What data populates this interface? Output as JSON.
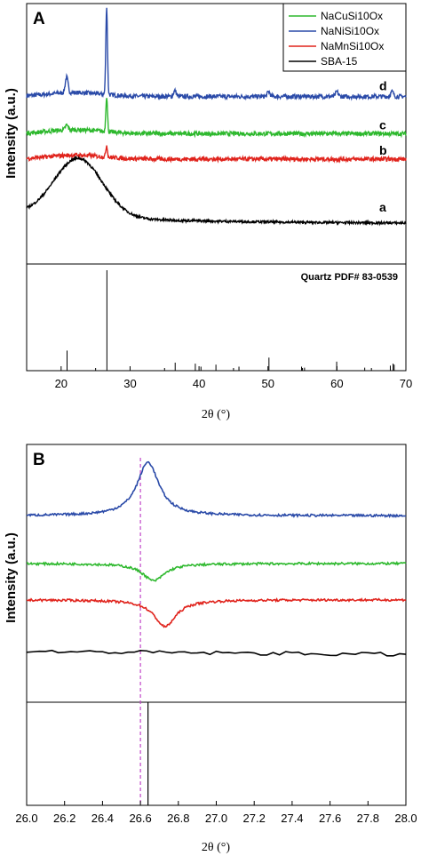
{
  "chart_data": [
    {
      "type": "line",
      "panel_label": "A",
      "xlabel": "2θ (°)",
      "ylabel": "Intensity (a.u.)",
      "xlim": [
        15,
        70
      ],
      "xticks": [
        20,
        30,
        40,
        50,
        60,
        70
      ],
      "legend": {
        "position": "top-right",
        "entries": [
          {
            "name": "NaCuSi10Ox",
            "color": "#2db82d"
          },
          {
            "name": "NaNiSi10Ox",
            "color": "#2a4aa8"
          },
          {
            "name": "NaMnSi10Ox",
            "color": "#e0231c"
          },
          {
            "name": "SBA-15",
            "color": "#000000"
          }
        ]
      },
      "series": [
        {
          "name": "NaNiSi10Ox",
          "label": "d",
          "color": "#2a4aa8",
          "baseline": 0.62,
          "peaks": [
            [
              20.8,
              0.08
            ],
            [
              26.6,
              0.45
            ],
            [
              36.5,
              0.03
            ],
            [
              50.1,
              0.025
            ],
            [
              60.0,
              0.025
            ],
            [
              68.0,
              0.025
            ]
          ]
        },
        {
          "name": "NaCuSi10Ox",
          "label": "c",
          "color": "#2db82d",
          "baseline": 0.43,
          "peaks": [
            [
              20.8,
              0.025
            ],
            [
              26.6,
              0.18
            ]
          ]
        },
        {
          "name": "NaMnSi10Ox",
          "label": "b",
          "color": "#e0231c",
          "baseline": 0.3,
          "peaks": [
            [
              26.6,
              0.06
            ]
          ]
        },
        {
          "name": "SBA-15",
          "label": "a",
          "color": "#000000",
          "baseline": 0.0,
          "broad_peak": [
            22.5,
            0.3
          ]
        }
      ],
      "reference": {
        "label": "Quartz PDF# 83-0539",
        "color": "#000000",
        "lines": [
          [
            20.86,
            0.2
          ],
          [
            26.64,
            1.0
          ],
          [
            36.54,
            0.08
          ],
          [
            39.46,
            0.07
          ],
          [
            40.28,
            0.04
          ],
          [
            42.45,
            0.06
          ],
          [
            45.79,
            0.04
          ],
          [
            50.14,
            0.13
          ],
          [
            54.87,
            0.04
          ],
          [
            55.3,
            0.03
          ],
          [
            59.96,
            0.09
          ],
          [
            64.03,
            0.03
          ],
          [
            67.74,
            0.05
          ],
          [
            68.14,
            0.07
          ],
          [
            68.3,
            0.06
          ]
        ]
      }
    },
    {
      "type": "line",
      "panel_label": "B",
      "xlabel": "2θ (°)",
      "ylabel": "Intensity (a.u.)",
      "xlim": [
        26.0,
        28.0
      ],
      "xticks": [
        26.0,
        26.2,
        26.4,
        26.6,
        26.8,
        27.0,
        27.2,
        27.4,
        27.6,
        27.8,
        28.0
      ],
      "marker_line": {
        "x": 26.6,
        "color": "#c044c8",
        "style": "dashed"
      },
      "series": [
        {
          "name": "NaNiSi10Ox",
          "color": "#2a4aa8",
          "baseline": 0.72,
          "peak": [
            26.64,
            1.0
          ]
        },
        {
          "name": "NaCuSi10Ox",
          "color": "#2db82d",
          "baseline": 0.47,
          "peak": [
            26.67,
            0.38
          ]
        },
        {
          "name": "NaMnSi10Ox",
          "color": "#e0231c",
          "baseline": 0.28,
          "peak": [
            26.73,
            0.14
          ]
        },
        {
          "name": "SBA-15",
          "color": "#000000",
          "baseline": 0.0,
          "peak": null
        }
      ],
      "reference": {
        "lines": [
          [
            26.64,
            1.0
          ]
        ],
        "color": "#000000"
      }
    }
  ]
}
